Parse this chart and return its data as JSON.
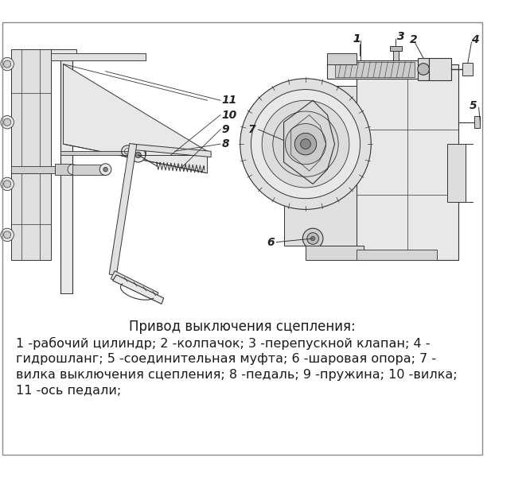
{
  "title_line": "Привод выключения сцепления:",
  "caption_lines": [
    "1 -рабочий цилиндр; 2 -колпачок; 3 -перепускной клапан; 4 -",
    "гидрошланг; 5 -соединительная муфта; 6 -шаровая опора; 7 -",
    "вилка выключения сцепления; 8 -педаль; 9 -пружина; 10 -вилка;",
    "11 -ось педали;"
  ],
  "bg_color": "#ffffff",
  "text_color": "#1a1a1a",
  "label_color": "#222222",
  "line_color": "#333333",
  "title_fontsize": 12,
  "caption_fontsize": 11.5,
  "label_fontsize": 10,
  "fig_width": 6.66,
  "fig_height": 6.0,
  "dpi": 100
}
